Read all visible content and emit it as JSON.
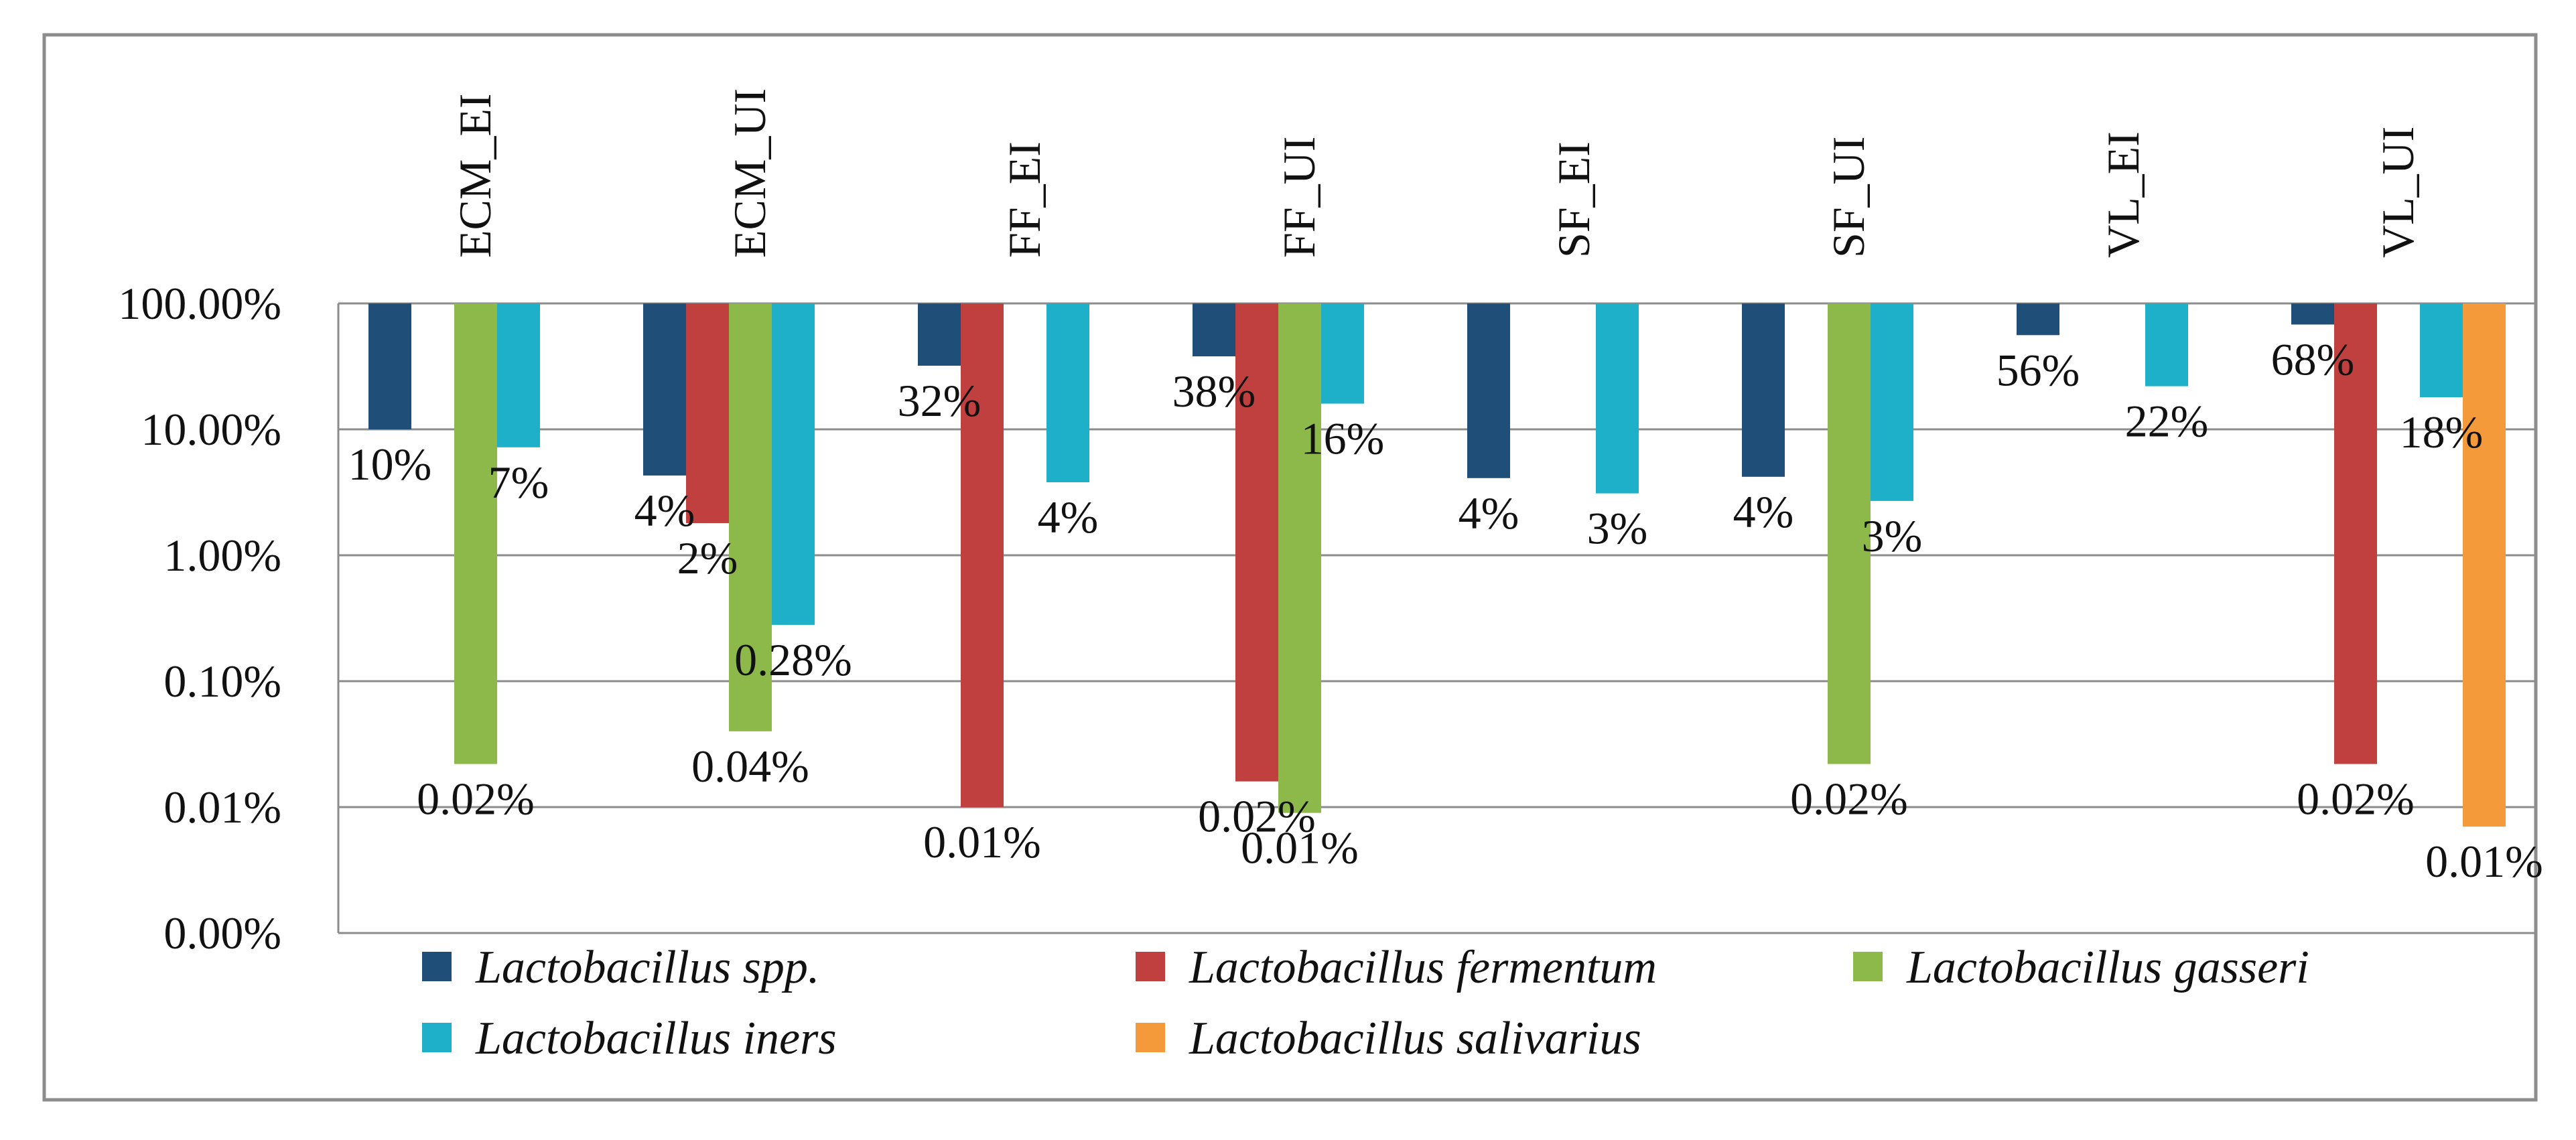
{
  "chart_data": {
    "type": "bar",
    "yscale": "log",
    "ylim": [
      "0.00%",
      "100.00%"
    ],
    "yticks": [
      "100.00%",
      "10.00%",
      "1.00%",
      "0.10%",
      "0.01%",
      "0.00%"
    ],
    "categories": [
      "ECM_EI",
      "ECM_UI",
      "FF_EI",
      "FF_UI",
      "SF_EI",
      "SF_UI",
      "VL_EI",
      "VL_UI"
    ],
    "series": [
      {
        "name": "Lactobacillus spp.",
        "color": "#1F4E79",
        "values": [
          10,
          4.3,
          32,
          38,
          4.1,
          4.2,
          56,
          68
        ],
        "labels": [
          "10%",
          "4%",
          "32%",
          "38%",
          "4%",
          "4%",
          "56%",
          "68%"
        ]
      },
      {
        "name": "Lactobacillus fermentum",
        "color": "#C0403F",
        "values": [
          null,
          1.8,
          0.01,
          0.016,
          null,
          null,
          null,
          0.022
        ],
        "labels": [
          null,
          "2%",
          "0.01%",
          "0.02%",
          null,
          null,
          null,
          "0.02%"
        ]
      },
      {
        "name": "Lactobacillus gasseri",
        "color": "#8DB84A",
        "values": [
          0.022,
          0.04,
          null,
          0.009,
          null,
          0.022,
          null,
          null
        ],
        "labels": [
          "0.02%",
          "0.04%",
          null,
          "0.01%",
          null,
          "0.02%",
          null,
          null
        ]
      },
      {
        "name": "Lactobacillus iners",
        "color": "#1EB0C8",
        "values": [
          7.2,
          0.28,
          3.8,
          16,
          3.1,
          2.7,
          22,
          18
        ],
        "labels": [
          "7%",
          "0.28%",
          "4%",
          "16%",
          "3%",
          "3%",
          "22%",
          "18%"
        ]
      },
      {
        "name": "Lactobacillus salivarius",
        "color": "#F59A3A",
        "values": [
          null,
          null,
          null,
          null,
          null,
          null,
          null,
          0.007
        ],
        "labels": [
          null,
          null,
          null,
          null,
          null,
          null,
          null,
          "0.01%"
        ]
      }
    ],
    "legend_position": "bottom"
  }
}
